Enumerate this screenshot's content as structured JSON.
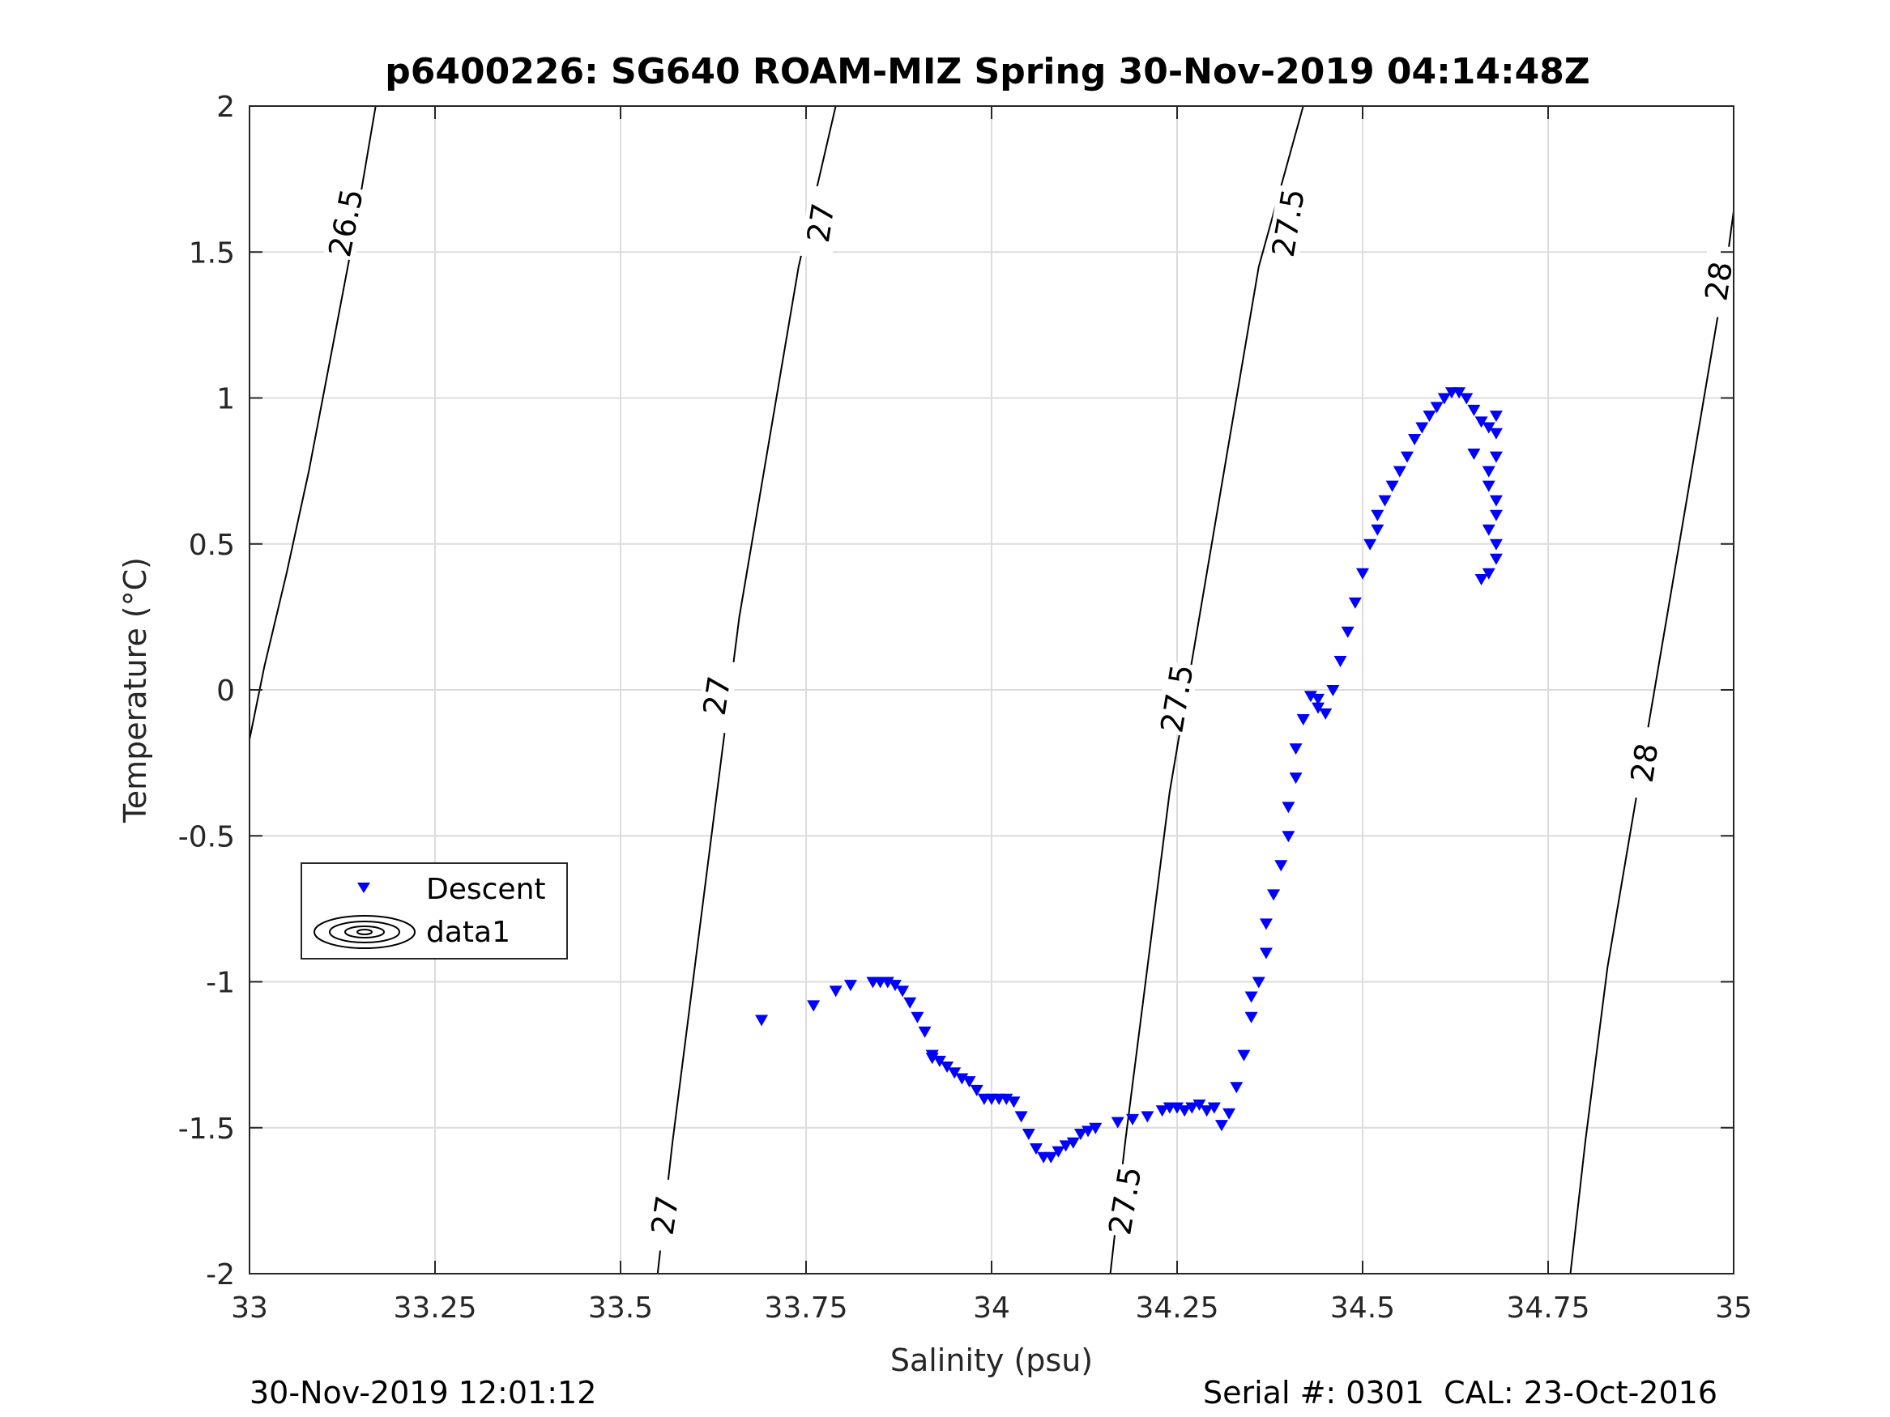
{
  "chart_data": {
    "type": "scatter",
    "title": "p6400226: SG640 ROAM-MIZ Spring 30-Nov-2019 04:14:48Z",
    "xlabel": "Salinity (psu)",
    "ylabel": "Temperature (°C)",
    "xlim": [
      33,
      35
    ],
    "ylim": [
      -2,
      2
    ],
    "xticks": [
      33,
      33.25,
      33.5,
      33.75,
      34,
      34.25,
      34.5,
      34.75,
      35
    ],
    "xtick_labels": [
      "33",
      "33.25",
      "33.5",
      "33.75",
      "34",
      "34.25",
      "34.5",
      "34.75",
      "35"
    ],
    "yticks": [
      -2,
      -1.5,
      -1,
      -0.5,
      0,
      0.5,
      1,
      1.5,
      2
    ],
    "ytick_labels": [
      "-2",
      "-1.5",
      "-1",
      "-0.5",
      "0",
      "0.5",
      "1",
      "1.5",
      "2"
    ],
    "grid": true,
    "legend": {
      "placement": "left",
      "entries": [
        "Descent",
        "data1"
      ]
    },
    "footer_left": "30-Nov-2019 12:01:12",
    "footer_right": "Serial #: 0301  CAL: 23-Oct-2016",
    "series": [
      {
        "name": "Descent",
        "marker": "down-triangle",
        "color": "#0000ff",
        "x": [
          33.69,
          33.76,
          33.79,
          33.81,
          33.84,
          33.85,
          33.86,
          33.87,
          33.88,
          33.89,
          33.9,
          33.91,
          33.92,
          33.92,
          33.93,
          33.94,
          33.95,
          33.96,
          33.97,
          33.98,
          33.99,
          34.0,
          34.01,
          34.02,
          34.03,
          34.04,
          34.05,
          34.06,
          34.07,
          34.08,
          34.09,
          34.1,
          34.11,
          34.12,
          34.13,
          34.14,
          34.17,
          34.19,
          34.21,
          34.23,
          34.24,
          34.25,
          34.26,
          34.27,
          34.28,
          34.29,
          34.3,
          34.31,
          34.32,
          34.33,
          34.34,
          34.35,
          34.35,
          34.36,
          34.37,
          34.37,
          34.38,
          34.39,
          34.4,
          34.4,
          34.41,
          34.41,
          34.42,
          34.43,
          34.44,
          34.44,
          34.45,
          34.46,
          34.47,
          34.48,
          34.49,
          34.5,
          34.51,
          34.52,
          34.52,
          34.53,
          34.54,
          34.55,
          34.56,
          34.57,
          34.58,
          34.59,
          34.6,
          34.61,
          34.62,
          34.63,
          34.64,
          34.65,
          34.66,
          34.67,
          34.68,
          34.68,
          34.68,
          34.67,
          34.67,
          34.68,
          34.68,
          34.67,
          34.68,
          34.68,
          34.67,
          34.66,
          34.65
        ],
        "y": [
          -1.13,
          -1.08,
          -1.03,
          -1.01,
          -1.0,
          -1.0,
          -1.0,
          -1.01,
          -1.03,
          -1.07,
          -1.12,
          -1.17,
          -1.25,
          -1.26,
          -1.27,
          -1.29,
          -1.31,
          -1.33,
          -1.34,
          -1.37,
          -1.4,
          -1.4,
          -1.4,
          -1.4,
          -1.41,
          -1.46,
          -1.52,
          -1.57,
          -1.6,
          -1.6,
          -1.58,
          -1.56,
          -1.55,
          -1.52,
          -1.51,
          -1.5,
          -1.48,
          -1.47,
          -1.46,
          -1.44,
          -1.43,
          -1.43,
          -1.44,
          -1.43,
          -1.42,
          -1.44,
          -1.43,
          -1.49,
          -1.45,
          -1.36,
          -1.25,
          -1.12,
          -1.05,
          -1.0,
          -0.9,
          -0.8,
          -0.7,
          -0.6,
          -0.5,
          -0.4,
          -0.3,
          -0.2,
          -0.1,
          -0.02,
          -0.03,
          -0.06,
          -0.08,
          0.0,
          0.1,
          0.2,
          0.3,
          0.4,
          0.5,
          0.55,
          0.6,
          0.65,
          0.7,
          0.75,
          0.8,
          0.86,
          0.9,
          0.94,
          0.97,
          1.0,
          1.02,
          1.02,
          1.0,
          0.96,
          0.92,
          0.9,
          0.94,
          0.88,
          0.8,
          0.75,
          0.7,
          0.65,
          0.6,
          0.55,
          0.5,
          0.45,
          0.4,
          0.38,
          0.81
        ]
      }
    ],
    "density_contours": [
      {
        "label": "26.5",
        "points": [
          [
            33.0,
            -0.17
          ],
          [
            33.02,
            0.08
          ],
          [
            33.05,
            0.4
          ],
          [
            33.08,
            0.75
          ],
          [
            33.11,
            1.15
          ],
          [
            33.14,
            1.55
          ],
          [
            33.17,
            2.0
          ]
        ],
        "label_at": [
          33.13,
          1.6
        ]
      },
      {
        "label": "27",
        "points": [
          [
            33.55,
            -2.0
          ],
          [
            33.57,
            -1.55
          ],
          [
            33.6,
            -0.95
          ],
          [
            33.63,
            -0.35
          ],
          [
            33.66,
            0.25
          ],
          [
            33.7,
            0.85
          ],
          [
            33.74,
            1.45
          ],
          [
            33.79,
            2.0
          ]
        ],
        "label_at": [
          33.77,
          1.6
        ],
        "extra_labels": [
          [
            33.56,
            -1.8
          ],
          [
            33.63,
            -0.02
          ]
        ]
      },
      {
        "label": "27.5",
        "points": [
          [
            34.16,
            -2.0
          ],
          [
            34.18,
            -1.55
          ],
          [
            34.21,
            -0.95
          ],
          [
            34.24,
            -0.35
          ],
          [
            34.28,
            0.25
          ],
          [
            34.32,
            0.85
          ],
          [
            34.36,
            1.45
          ],
          [
            34.42,
            2.0
          ]
        ],
        "label_at": [
          34.4,
          1.6
        ],
        "extra_labels": [
          [
            34.18,
            -1.75
          ],
          [
            34.25,
            -0.03
          ]
        ]
      },
      {
        "label": "28",
        "points": [
          [
            34.78,
            -2.0
          ],
          [
            34.8,
            -1.55
          ],
          [
            34.83,
            -0.95
          ],
          [
            34.87,
            -0.35
          ],
          [
            34.91,
            0.25
          ],
          [
            34.95,
            0.85
          ],
          [
            34.99,
            1.45
          ],
          [
            35.0,
            1.64
          ]
        ],
        "label_at": [
          34.98,
          1.4
        ],
        "extra_labels": [
          [
            34.88,
            -0.25
          ]
        ]
      }
    ]
  }
}
